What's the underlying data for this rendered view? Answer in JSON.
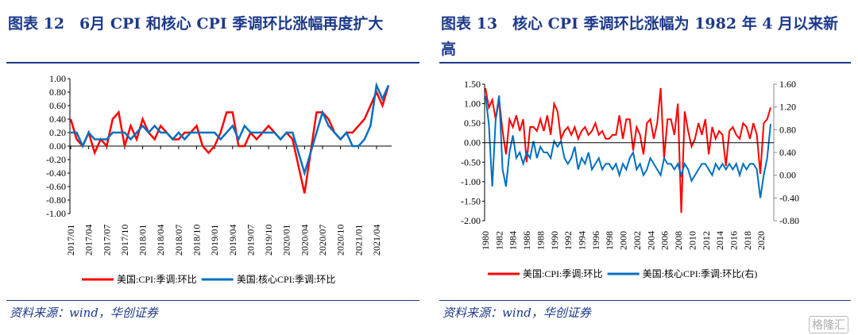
{
  "left": {
    "title": "图表 12　6月 CPI 和核心 CPI 季调环比涨幅再度扩大",
    "source": "资料来源：wind，华创证券"
  },
  "right": {
    "title": "图表 13　核心 CPI 季调环比涨幅为 1982 年 4 月以来新高",
    "source": "资料来源：wind，华创证券"
  },
  "watermark": "格隆汇",
  "chart_data": [
    {
      "type": "line",
      "title": "6月CPI和核心CPI季调环比涨幅再度扩大",
      "start": "2017/01",
      "frequency": "monthly",
      "ylim": [
        -1,
        1
      ],
      "yticks": [
        "1.00",
        "0.80",
        "0.60",
        "0.40",
        "0.20",
        "0.00",
        "-0.20",
        "-0.40",
        "-0.60",
        "-0.80",
        "-1.00"
      ],
      "xticks": [
        "2017/01",
        "2017/04",
        "2017/07",
        "2017/10",
        "2018/01",
        "2018/04",
        "2018/07",
        "2018/10",
        "2019/01",
        "2019/04",
        "2019/07",
        "2019/10",
        "2020/01",
        "2020/04",
        "2020/07",
        "2020/10",
        "2021/01",
        "2021/04"
      ],
      "legend_position": "bottom",
      "series": [
        {
          "name": "美国:CPI:季调:环比",
          "color": "#ff0000",
          "values": [
            0.4,
            0.1,
            0.0,
            0.2,
            -0.1,
            0.1,
            0.0,
            0.4,
            0.5,
            0.0,
            0.3,
            0.1,
            0.4,
            0.2,
            0.1,
            0.3,
            0.2,
            0.1,
            0.1,
            0.2,
            0.2,
            0.3,
            0.0,
            -0.1,
            0.0,
            0.2,
            0.5,
            0.5,
            0.0,
            0.0,
            0.2,
            0.1,
            0.2,
            0.3,
            0.2,
            0.1,
            0.2,
            0.1,
            -0.3,
            -0.7,
            -0.1,
            0.5,
            0.5,
            0.4,
            0.2,
            0.1,
            0.2,
            0.2,
            0.3,
            0.4,
            0.6,
            0.8,
            0.6,
            0.9
          ]
        },
        {
          "name": "美国:核心CPI:季调:环比",
          "color": "#0070c0",
          "values": [
            0.2,
            0.2,
            0.0,
            0.2,
            0.1,
            0.1,
            0.1,
            0.2,
            0.2,
            0.2,
            0.1,
            0.2,
            0.3,
            0.2,
            0.3,
            0.2,
            0.2,
            0.1,
            0.2,
            0.1,
            0.2,
            0.2,
            0.2,
            0.2,
            0.2,
            0.1,
            0.2,
            0.3,
            0.1,
            0.3,
            0.2,
            0.2,
            0.2,
            0.2,
            0.2,
            0.1,
            0.2,
            0.2,
            -0.1,
            -0.4,
            -0.1,
            0.2,
            0.5,
            0.3,
            0.2,
            0.1,
            0.2,
            0.0,
            0.0,
            0.1,
            0.3,
            0.9,
            0.7,
            0.9
          ]
        }
      ]
    },
    {
      "type": "line",
      "title": "核心CPI季调环比涨幅为1982年4月以来新高",
      "start": "1980",
      "frequency": "semiannual (approx.)",
      "ylim": [
        -2,
        1.5
      ],
      "y2lim": [
        -0.8,
        1.6
      ],
      "yticks": [
        "1.50",
        "1.00",
        "0.50",
        "0.00",
        "-0.50",
        "-1.00",
        "-1.50",
        "-2.00"
      ],
      "y2ticks": [
        "1.60",
        "1.20",
        "0.80",
        "0.40",
        "0.00",
        "-0.40",
        "-0.80"
      ],
      "xticks": [
        "1980",
        "1982",
        "1984",
        "1986",
        "1988",
        "1990",
        "1992",
        "1994",
        "1996",
        "1998",
        "2000",
        "2002",
        "2004",
        "2006",
        "2008",
        "2010",
        "2012",
        "2014",
        "2016",
        "2018",
        "2020"
      ],
      "legend_position": "bottom",
      "series": [
        {
          "name": "美国:CPI:季调:环比",
          "axis": "left",
          "color": "#ff0000",
          "values": [
            1.4,
            0.9,
            1.1,
            0.6,
            1.1,
            0.3,
            -0.3,
            0.6,
            0.4,
            0.7,
            0.3,
            0.6,
            -0.5,
            0.4,
            0.4,
            0.3,
            0.6,
            0.3,
            0.7,
            0.2,
            1.0,
            0.8,
            0.1,
            0.3,
            0.4,
            0.2,
            0.4,
            0.1,
            0.3,
            0.4,
            0.2,
            0.3,
            0.5,
            0.2,
            0.3,
            0.1,
            0.1,
            0.2,
            0.2,
            0.7,
            0.1,
            0.6,
            0.6,
            -0.2,
            0.4,
            0.2,
            -0.3,
            0.5,
            0.6,
            0.1,
            0.5,
            1.4,
            -0.4,
            0.6,
            0.6,
            0.2,
            1.0,
            -1.8,
            0.8,
            0.3,
            -0.1,
            0.1,
            0.5,
            0.2,
            0.6,
            -0.3,
            0.4,
            0.1,
            0.3,
            0.2,
            -0.6,
            0.3,
            0.4,
            0.2,
            0.1,
            0.5,
            0.4,
            0.1,
            0.5,
            0.2,
            -0.8,
            0.5,
            0.6,
            0.9
          ]
        },
        {
          "name": "美国:核心CPI:季调:环比(右)",
          "axis": "right",
          "color": "#0070c0",
          "values": [
            1.4,
            0.9,
            -0.2,
            1.0,
            1.4,
            0.1,
            -0.2,
            0.4,
            0.7,
            0.3,
            0.4,
            0.2,
            0.4,
            0.3,
            0.6,
            0.3,
            0.5,
            0.4,
            0.4,
            0.3,
            0.6,
            0.5,
            0.6,
            0.3,
            0.2,
            0.3,
            0.5,
            0.1,
            0.3,
            0.2,
            0.4,
            0.1,
            0.2,
            0.3,
            0.1,
            0.2,
            0.2,
            0.1,
            0.2,
            0.0,
            0.2,
            0.1,
            0.3,
            0.4,
            0.1,
            0.2,
            0.0,
            0.1,
            0.3,
            0.2,
            0.1,
            0.0,
            0.3,
            0.2,
            0.2,
            0.1,
            0.2,
            0.0,
            0.2,
            0.1,
            -0.1,
            0.0,
            0.1,
            0.2,
            0.2,
            0.1,
            0.0,
            0.2,
            0.1,
            0.2,
            0.1,
            0.2,
            0.1,
            0.2,
            0.0,
            0.2,
            0.1,
            0.2,
            0.2,
            0.1,
            -0.4,
            0.0,
            0.3,
            0.9
          ]
        }
      ]
    }
  ]
}
